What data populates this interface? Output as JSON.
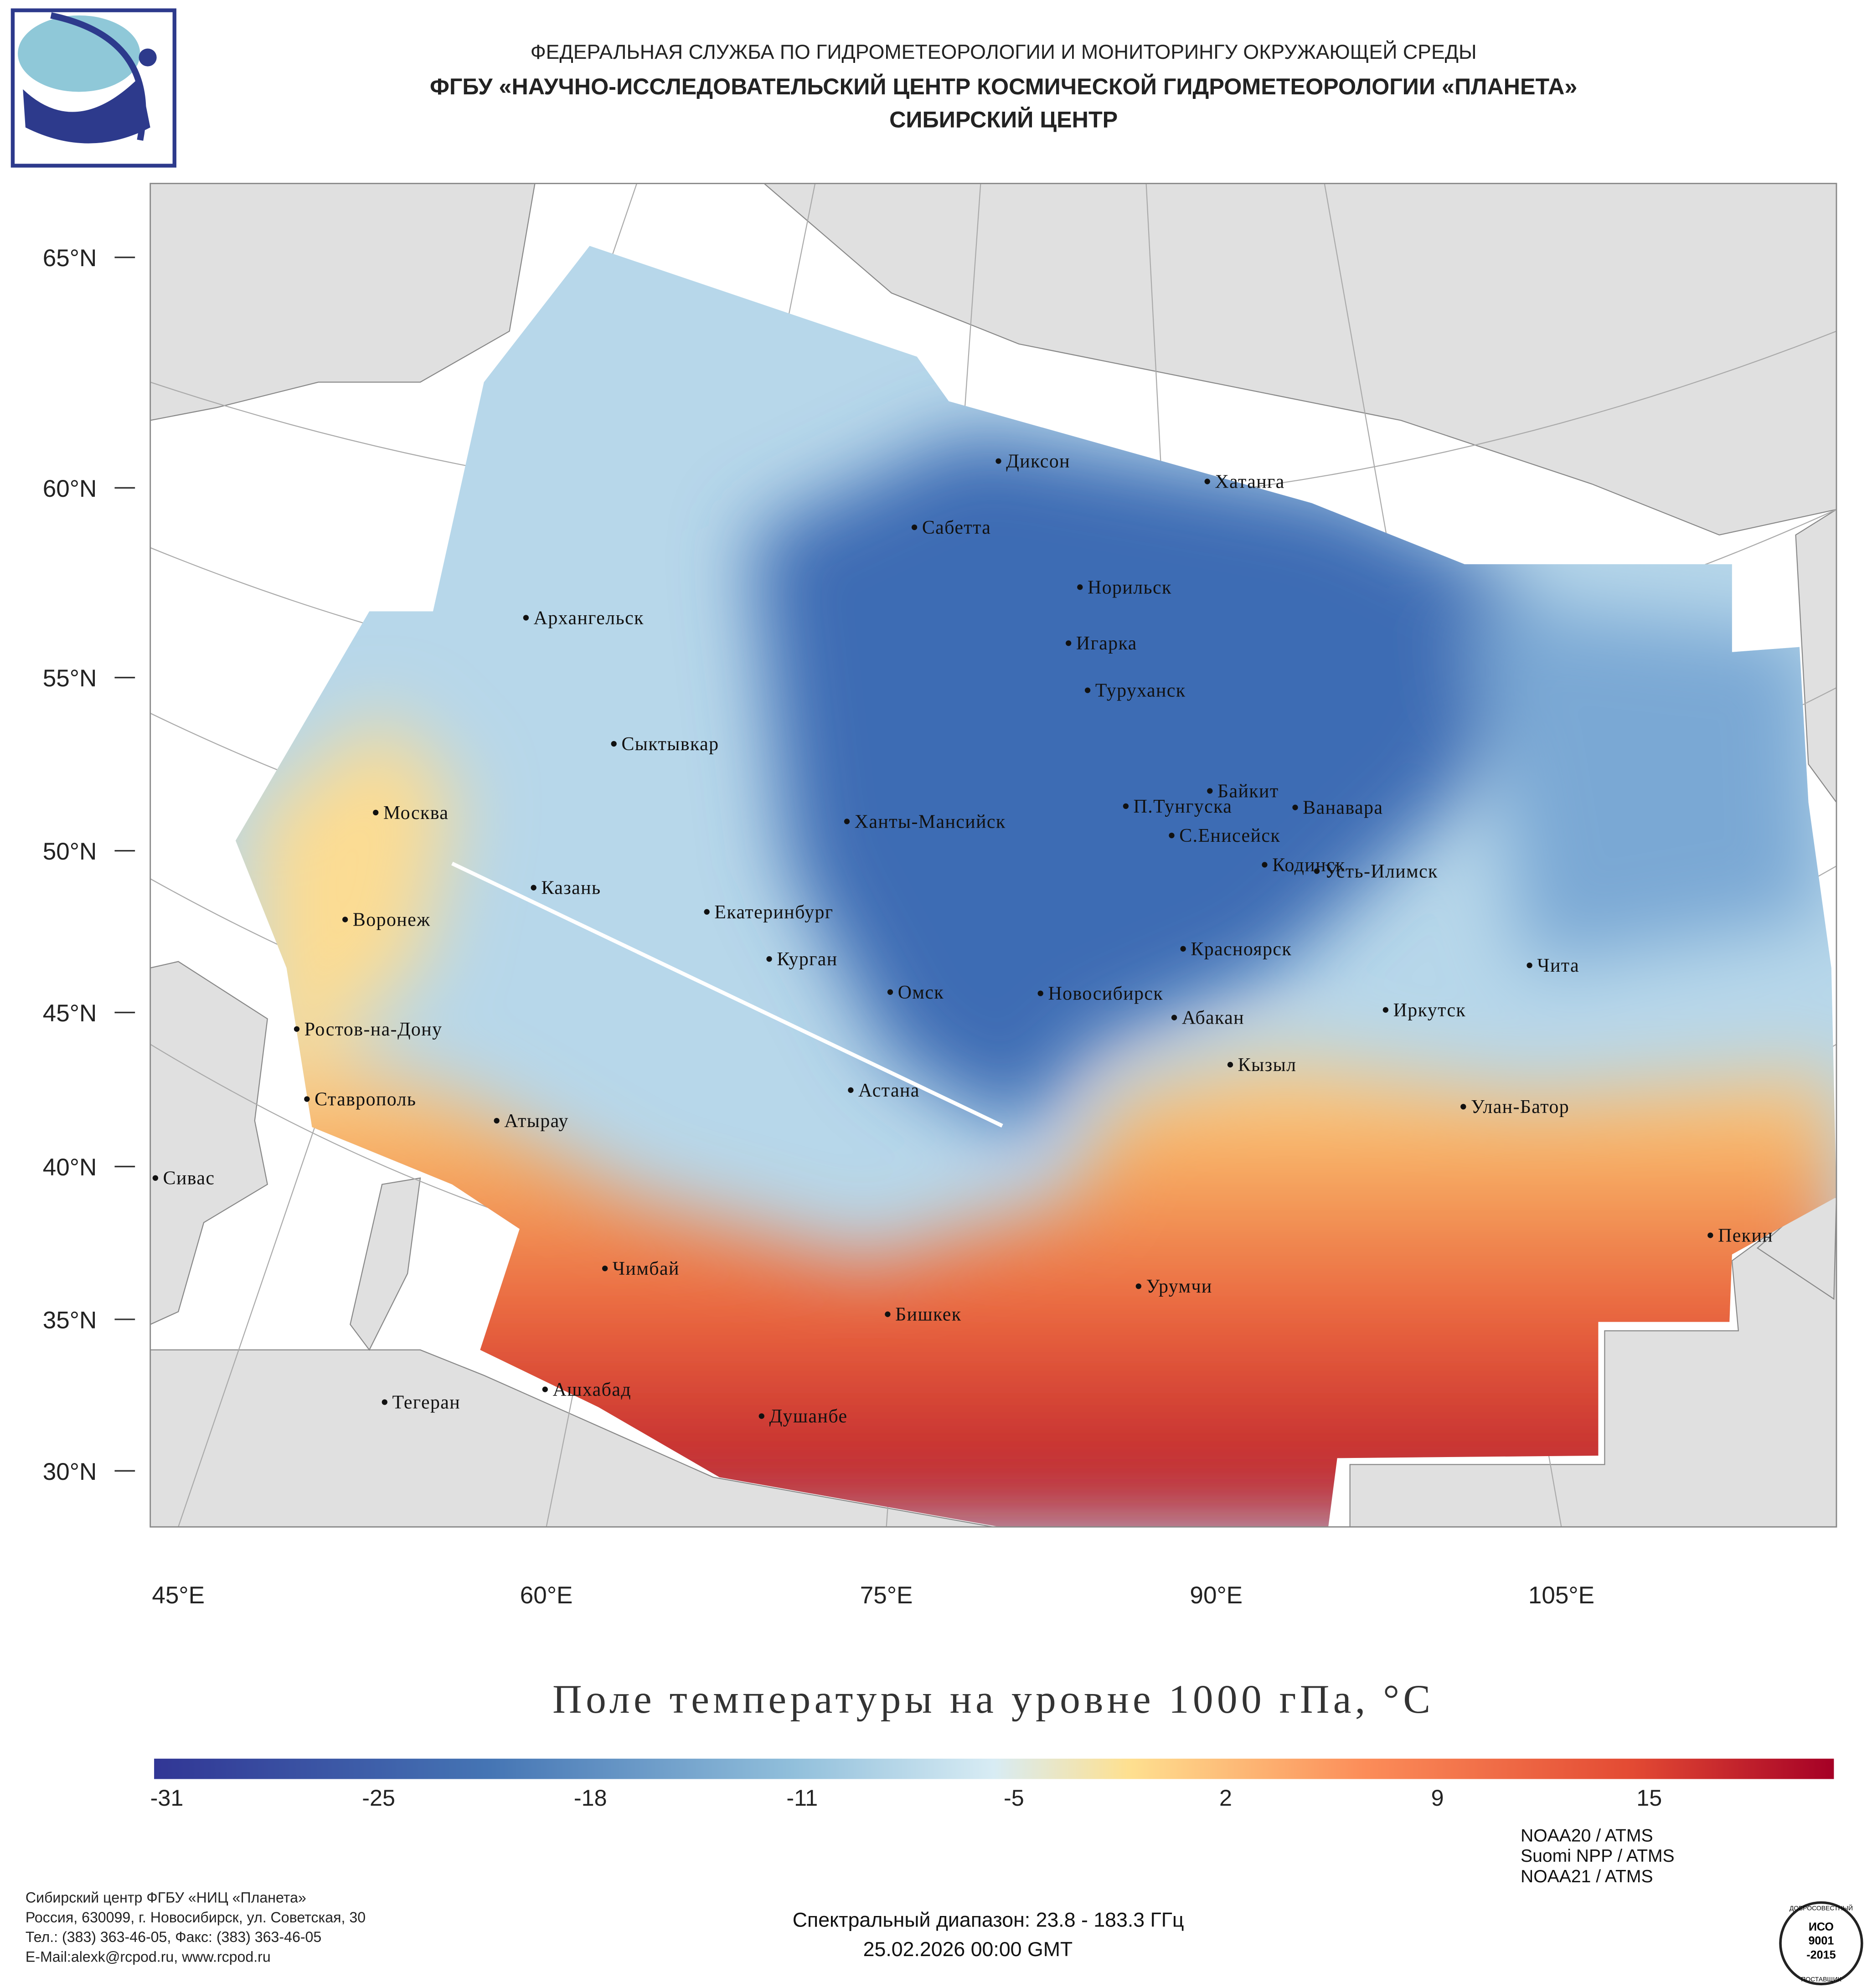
{
  "header": {
    "agency": "ФЕДЕРАЛЬНАЯ СЛУЖБА ПО ГИДРОМЕТЕОРОЛОГИИ И МОНИТОРИНГУ ОКРУЖАЮЩЕЙ СРЕДЫ",
    "institute": "ФГБУ «НАУЧНО-ИССЛЕДОВАТЕЛЬСКИЙ ЦЕНТР КОСМИЧЕСКОЙ ГИДРОМЕТЕОРОЛОГИИ «ПЛАНЕТА»",
    "center": "СИБИРСКИЙ ЦЕНТР"
  },
  "map": {
    "lat_labels": [
      "65°N",
      "60°N",
      "55°N",
      "50°N",
      "45°N",
      "40°N",
      "35°N",
      "30°N"
    ],
    "lon_labels": [
      "45°E",
      "60°E",
      "75°E",
      "90°E",
      "105°E"
    ],
    "cities": [
      "Диксон",
      "Хатанга",
      "Сабетта",
      "Норильск",
      "Архангельск",
      "Игарка",
      "Туруханск",
      "Сыктывкар",
      "Байкит",
      "Москва",
      "П.Тунгуска",
      "Ванавара",
      "Ханты-Мансийск",
      "С.Енисейск",
      "Кодинск",
      "Усть-Илимск",
      "Казань",
      "Екатеринбург",
      "Воронеж",
      "Красноярск",
      "Курган",
      "Чита",
      "Омск",
      "Новосибирск",
      "Иркутск",
      "Абакан",
      "Ростов-на-Дону",
      "Кызыл",
      "Астана",
      "Ставрополь",
      "Улан-Батор",
      "Атырау",
      "Сивас",
      "Пекин",
      "Чимбай",
      "Урумчи",
      "Бишкек",
      "Ашхабад",
      "Тегеран",
      "Душанбе"
    ]
  },
  "title": "Поле температуры на уровне 1000 гПа, °C",
  "colorbar": {
    "ticks": [
      -31,
      -25,
      -18,
      -11,
      -5,
      2,
      9,
      15
    ]
  },
  "footer": {
    "address": [
      "Сибирский центр ФГБУ «НИЦ «Планета»",
      "Россия, 630099, г. Новосибирск, ул. Советская, 30",
      "Тел.: (383) 363-46-05, Факс: (383) 363-46-05",
      "E-Mail:alexk@rcpod.ru, www.rcpod.ru"
    ],
    "spectral": "Спектральный диапазон: 23.8 - 183.3 ГГц",
    "datetime": "25.02.2026 00:00 GMT",
    "sensors": [
      "NOAA20 / ATMS",
      "Suomi NPP / ATMS",
      "NOAA21 / ATMS"
    ],
    "iso": {
      "top": "ДОБРОСОВЕСТНЫЙ",
      "name": "ИСО",
      "number": "9001",
      "year": "-2015",
      "bottom": "ПОСТАВЩИК"
    }
  }
}
